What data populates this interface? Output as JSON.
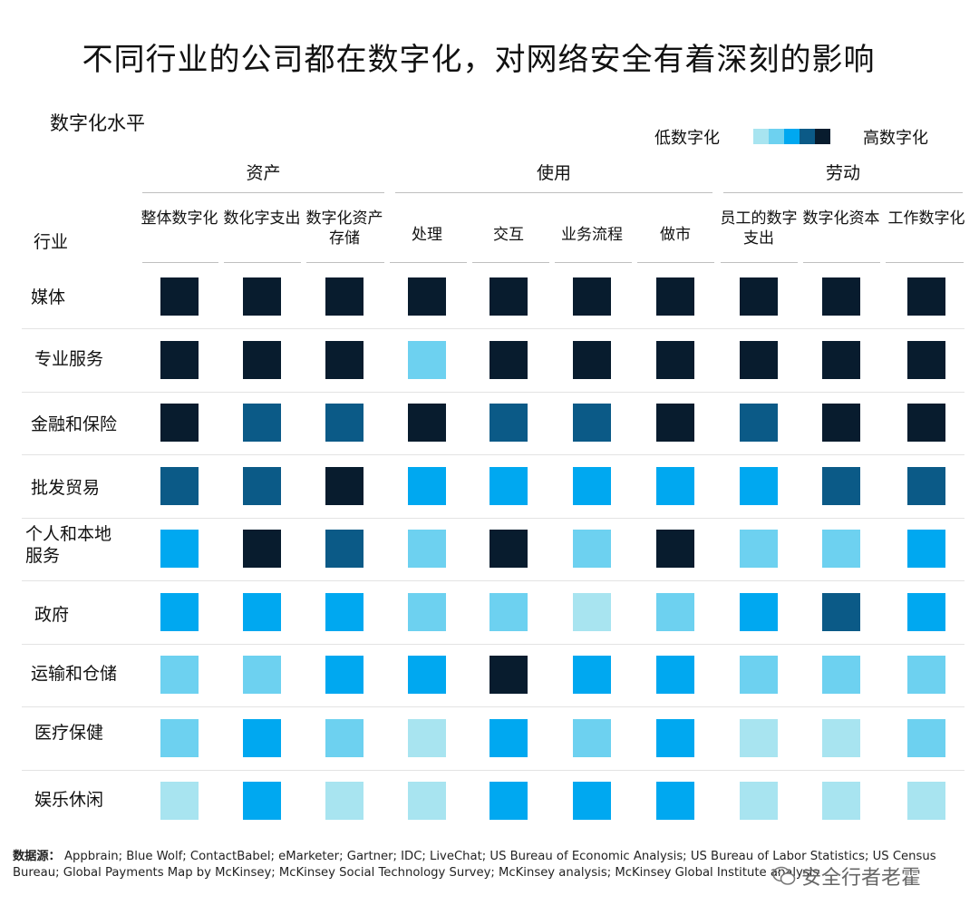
{
  "title": "不同行业的公司都在数字化，对网络安全有着深刻的影响",
  "subtitle": "数字化水平",
  "legend": {
    "low_label": "低数字化",
    "high_label": "高数字化",
    "colors": [
      "#a8e4f0",
      "#6dd1f0",
      "#00a8f0",
      "#0b5a87",
      "#081c2e"
    ]
  },
  "industry_header": "行业",
  "groups": [
    {
      "label": "资产",
      "columns": [
        "整体数字化",
        "数化字支出",
        "数字化资产存储"
      ]
    },
    {
      "label": "使用",
      "columns": [
        "处理",
        "交互",
        "业务流程",
        "做市"
      ]
    },
    {
      "label": "劳动",
      "columns": [
        "员工的数字支出",
        "数字化资本",
        "工作数字化"
      ]
    }
  ],
  "chart_data": {
    "type": "heatmap",
    "title": "不同行业的公司都在数字化，对网络安全有着深刻的影响",
    "columns": [
      "整体数字化",
      "数化字支出",
      "数字化资产存储",
      "处理",
      "交互",
      "业务流程",
      "做市",
      "员工的数字支出",
      "数字化资本",
      "工作数字化"
    ],
    "rows": [
      "媒体",
      "专业服务",
      "金融和保险",
      "批发贸易",
      "个人和本地服务",
      "政府",
      "运输和仓储",
      "医疗保健",
      "娱乐休闲"
    ],
    "scale": "1 = 低数字化 … 5 = 高数字化",
    "values": [
      [
        5,
        5,
        5,
        5,
        5,
        5,
        5,
        5,
        5,
        5
      ],
      [
        5,
        5,
        5,
        2,
        5,
        5,
        5,
        5,
        5,
        5
      ],
      [
        5,
        4,
        4,
        5,
        4,
        4,
        5,
        4,
        5,
        5
      ],
      [
        4,
        4,
        5,
        3,
        3,
        3,
        3,
        3,
        4,
        4
      ],
      [
        3,
        5,
        4,
        2,
        5,
        2,
        5,
        2,
        2,
        3
      ],
      [
        3,
        3,
        3,
        2,
        2,
        1,
        2,
        3,
        4,
        3
      ],
      [
        2,
        2,
        3,
        3,
        5,
        3,
        3,
        2,
        2,
        2
      ],
      [
        2,
        3,
        2,
        1,
        3,
        2,
        3,
        1,
        1,
        2
      ],
      [
        1,
        3,
        1,
        1,
        3,
        3,
        3,
        1,
        1,
        1
      ]
    ]
  },
  "source_label": "数据源：",
  "source_text": "Appbrain; Blue Wolf; ContactBabel; eMarketer; Gartner; IDC; LiveChat; US Bureau of Economic Analysis; US Bureau of Labor Statistics; US Census Bureau; Global Payments Map by McKinsey; McKinsey Social Technology Survey; McKinsey analysis; McKinsey Global Institute analysis",
  "watermark": "安全行者老霍"
}
